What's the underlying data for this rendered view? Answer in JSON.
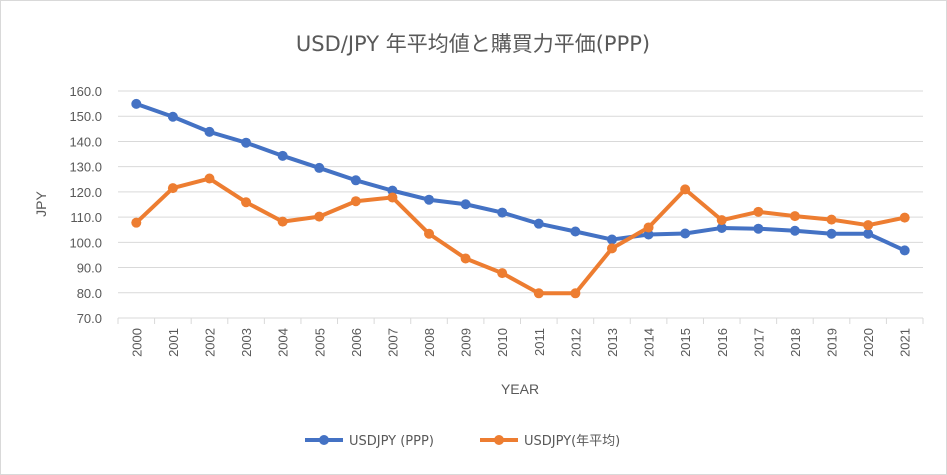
{
  "chart_data": {
    "type": "line",
    "title": "USD/JPY 年平均値と購買力平価(PPP)",
    "xlabel": "YEAR",
    "ylabel": "JPY",
    "categories": [
      "2000",
      "2001",
      "2002",
      "2003",
      "2004",
      "2005",
      "2006",
      "2007",
      "2008",
      "2009",
      "2010",
      "2011",
      "2012",
      "2013",
      "2014",
      "2015",
      "2016",
      "2017",
      "2018",
      "2019",
      "2020",
      "2021"
    ],
    "ylim": [
      70,
      160
    ],
    "yticks": [
      "70.0",
      "80.0",
      "90.0",
      "100.0",
      "110.0",
      "120.0",
      "130.0",
      "140.0",
      "150.0",
      "160.0"
    ],
    "grid": true,
    "legend": "bottom",
    "series": [
      {
        "name": "USDJPY (PPP)",
        "color": "#4472c4",
        "values": [
          154.9,
          149.8,
          143.8,
          139.5,
          134.3,
          129.5,
          124.6,
          120.5,
          116.9,
          115.1,
          111.8,
          107.4,
          104.3,
          101.1,
          103.1,
          103.5,
          105.7,
          105.4,
          104.6,
          103.4,
          103.4,
          96.8
        ]
      },
      {
        "name": "USDJPY(年平均)",
        "color": "#ed7d31",
        "values": [
          107.8,
          121.5,
          125.3,
          115.9,
          108.2,
          110.2,
          116.3,
          117.8,
          103.4,
          93.6,
          87.8,
          79.8,
          79.8,
          97.6,
          105.9,
          121.0,
          108.8,
          112.1,
          110.4,
          109.0,
          106.8,
          109.8
        ]
      }
    ]
  }
}
